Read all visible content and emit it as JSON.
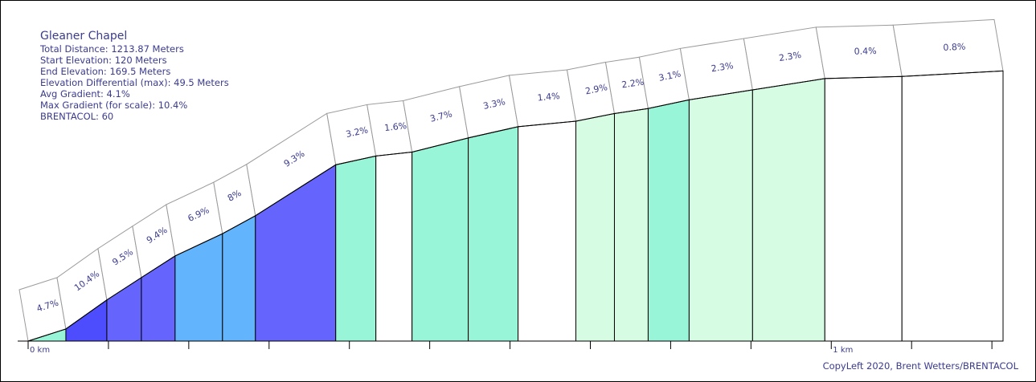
{
  "info": {
    "title": "Gleaner Chapel",
    "total_distance": "Total Distance: 1213.87 Meters",
    "start_elevation": "Start Elevation: 120 Meters",
    "end_elevation": "End Elevation: 169.5 Meters",
    "elevation_differential": "Elevation Differential (max): 49.5 Meters",
    "avg_gradient": "Avg Gradient: 4.1%",
    "max_gradient": "Max Gradient (for scale): 10.4%",
    "brentacol": "BRENTACOL: 60"
  },
  "copyright": "CopyLeft 2020, Brent Wetters/BRENTACOL",
  "colors": {
    "gradient_scale": [
      {
        "min": 0,
        "max": 1.95,
        "color": "#ffffff"
      },
      {
        "min": 1.95,
        "max": 3.05,
        "color": "#d6fde4"
      },
      {
        "min": 3.05,
        "max": 5.0,
        "color": "#98f5d8"
      },
      {
        "min": 5.0,
        "max": 8.5,
        "color": "#62b5fd"
      },
      {
        "min": 8.5,
        "max": 10.0,
        "color": "#6565fd"
      },
      {
        "min": 10.0,
        "max": 100,
        "color": "#4d4dfd"
      }
    ],
    "label": "#3b3b8f",
    "outline": "#000000"
  },
  "chart_data": {
    "type": "area",
    "title": "Gleaner Chapel",
    "x_unit": "km",
    "y_unit": "m",
    "xlim": [
      0,
      1.21387
    ],
    "start_elevation": 120,
    "end_elevation": 169.5,
    "x_tick_labels": [
      {
        "x": 0,
        "label": "0 km"
      },
      {
        "x": 1.0,
        "label": "1 km"
      }
    ],
    "minor_tick_step_km": 0.1,
    "segments": [
      {
        "start_km": 0.0,
        "end_km": 0.047,
        "gradient": 4.7,
        "label": "4.7%"
      },
      {
        "start_km": 0.047,
        "end_km": 0.098,
        "gradient": 10.4,
        "label": "10.4%"
      },
      {
        "start_km": 0.098,
        "end_km": 0.141,
        "gradient": 9.5,
        "label": "9.5%"
      },
      {
        "start_km": 0.141,
        "end_km": 0.183,
        "gradient": 9.4,
        "label": "9.4%"
      },
      {
        "start_km": 0.183,
        "end_km": 0.242,
        "gradient": 6.9,
        "label": "6.9%"
      },
      {
        "start_km": 0.242,
        "end_km": 0.283,
        "gradient": 8.0,
        "label": "8%"
      },
      {
        "start_km": 0.283,
        "end_km": 0.383,
        "gradient": 9.3,
        "label": "9.3%"
      },
      {
        "start_km": 0.383,
        "end_km": 0.433,
        "gradient": 3.2,
        "label": "3.2%"
      },
      {
        "start_km": 0.433,
        "end_km": 0.478,
        "gradient": 1.6,
        "label": "1.6%"
      },
      {
        "start_km": 0.478,
        "end_km": 0.548,
        "gradient": 3.7,
        "label": "3.7%"
      },
      {
        "start_km": 0.548,
        "end_km": 0.61,
        "gradient": 3.3,
        "label": "3.3%"
      },
      {
        "start_km": 0.61,
        "end_km": 0.682,
        "gradient": 1.4,
        "label": "1.4%"
      },
      {
        "start_km": 0.682,
        "end_km": 0.73,
        "gradient": 2.9,
        "label": "2.9%"
      },
      {
        "start_km": 0.73,
        "end_km": 0.772,
        "gradient": 2.2,
        "label": "2.2%"
      },
      {
        "start_km": 0.772,
        "end_km": 0.823,
        "gradient": 3.1,
        "label": "3.1%"
      },
      {
        "start_km": 0.823,
        "end_km": 0.902,
        "gradient": 2.3,
        "label": "2.3%"
      },
      {
        "start_km": 0.902,
        "end_km": 0.992,
        "gradient": 2.3,
        "label": "2.3%"
      },
      {
        "start_km": 0.992,
        "end_km": 1.088,
        "gradient": 0.4,
        "label": "0.4%"
      },
      {
        "start_km": 1.088,
        "end_km": 1.21387,
        "gradient": 0.8,
        "label": "0.8%"
      }
    ]
  }
}
